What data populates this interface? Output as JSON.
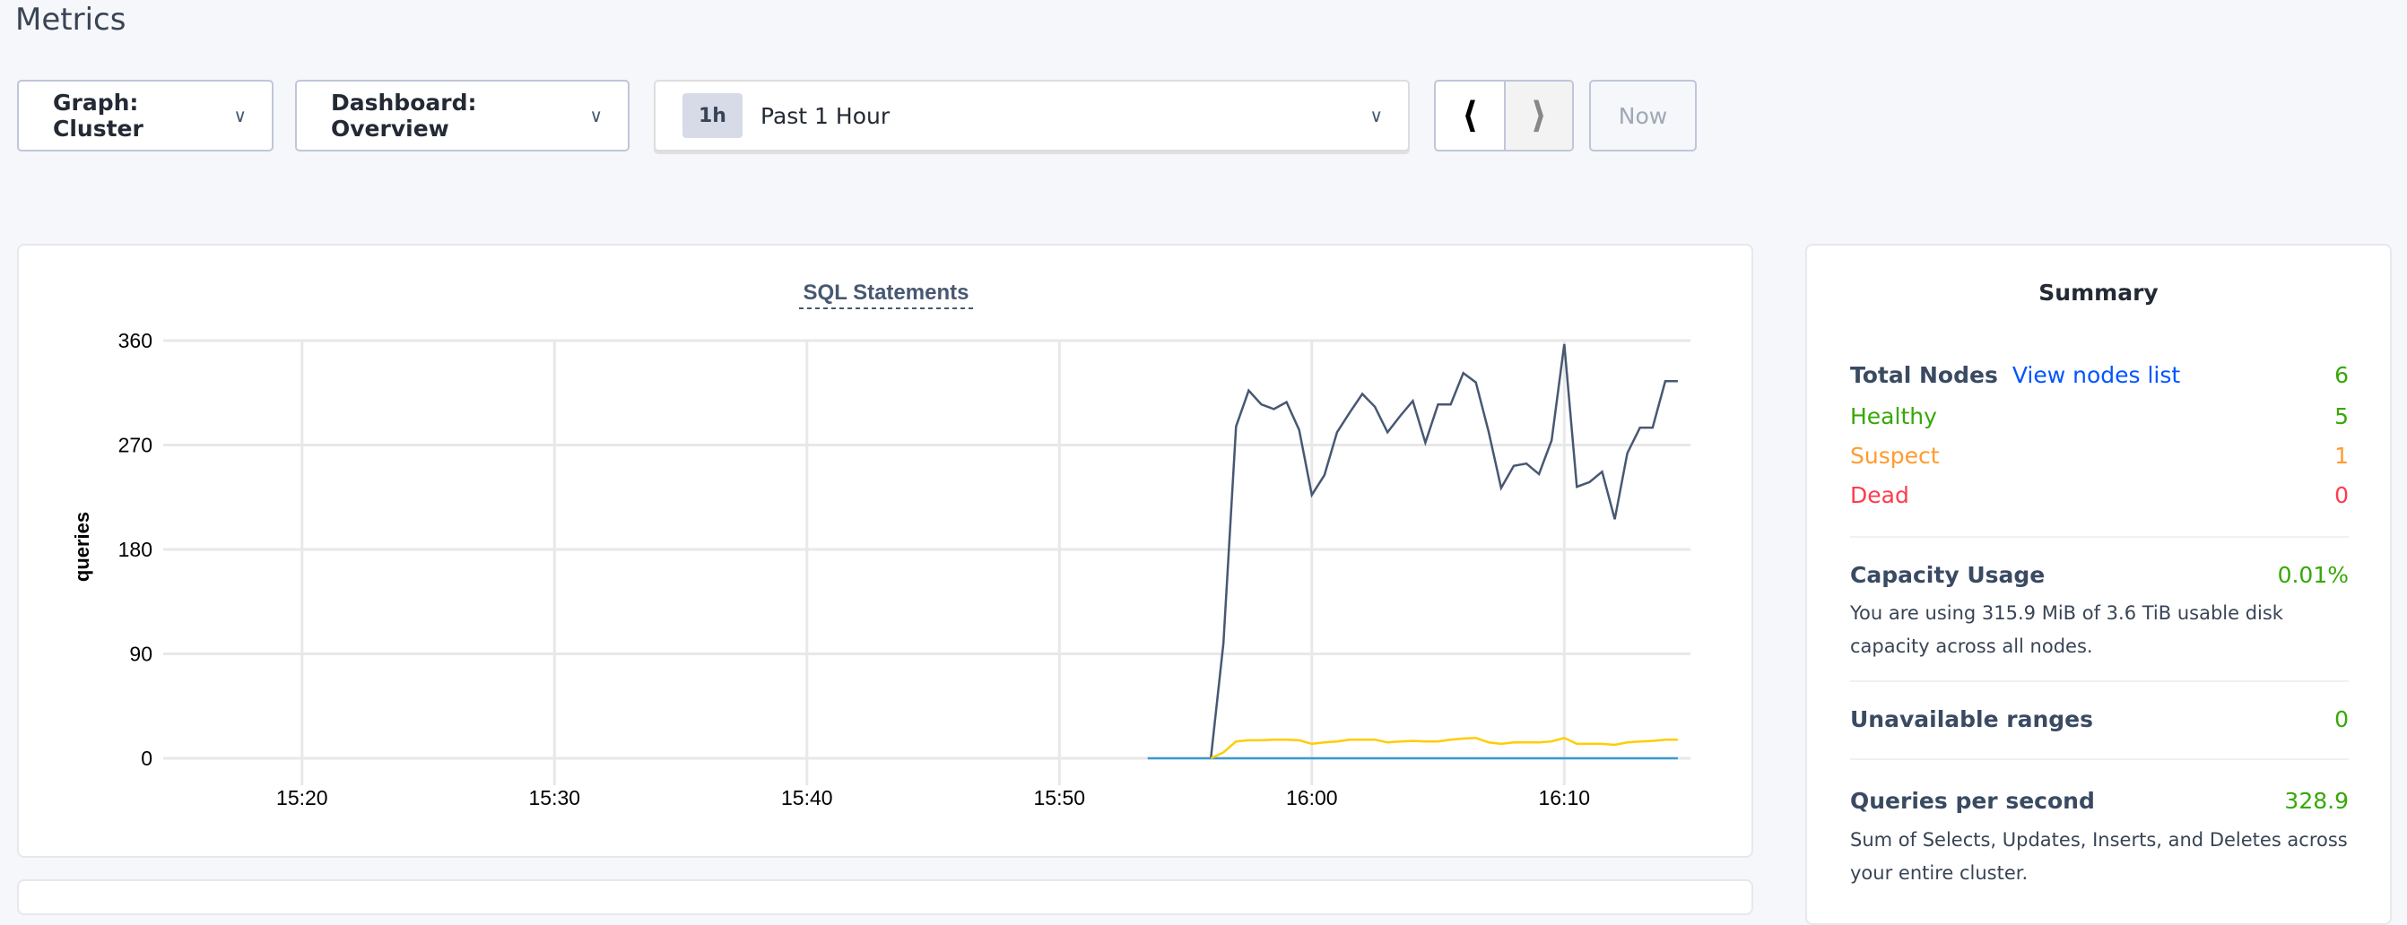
{
  "page": {
    "title": "Metrics"
  },
  "toolbar": {
    "graph_select": "Graph: Cluster",
    "dashboard_select": "Dashboard: Overview",
    "time_badge": "1h",
    "time_range": "Past 1 Hour",
    "prev_icon": "chevron-left-icon",
    "next_icon": "chevron-right-icon",
    "now_label": "Now"
  },
  "chart_data": {
    "type": "line",
    "title": "SQL Statements",
    "ylabel": "queries",
    "xlabel": "",
    "ylim": [
      0,
      360
    ],
    "xlim": [
      "15:14:30",
      "16:15:00"
    ],
    "yticks": [
      "0",
      "90",
      "180",
      "270",
      "360"
    ],
    "xticks": [
      "15:20",
      "15:30",
      "15:40",
      "15:50",
      "16:00",
      "16:10"
    ],
    "grid": true,
    "series": [
      {
        "color": "#3a99d0",
        "start": "15:53:30",
        "interval_seconds": 30,
        "values": [
          0,
          0,
          0,
          0,
          0,
          0,
          0,
          0,
          0,
          0,
          0,
          0,
          0,
          0,
          0,
          0,
          0,
          0,
          0,
          0,
          0,
          0,
          0,
          0,
          0,
          0,
          0,
          0,
          0,
          0,
          0,
          0,
          0,
          0,
          0,
          0,
          0,
          0,
          0,
          0,
          0,
          0,
          0
        ]
      },
      {
        "color": "#475872",
        "start": "15:56:00",
        "interval_seconds": 30,
        "values": [
          0,
          99,
          286,
          317,
          305,
          301,
          307,
          283,
          227,
          244,
          281,
          298,
          314,
          303,
          281,
          295,
          308,
          272,
          305,
          305,
          332,
          324,
          282,
          233,
          252,
          254,
          245,
          274,
          357,
          234,
          238,
          247,
          206,
          263,
          285,
          285,
          325,
          325
        ]
      },
      {
        "color": "#ffcd02",
        "start": "15:56:00",
        "interval_seconds": 30,
        "values": [
          0,
          5,
          14.5,
          15.5,
          15.5,
          16,
          16,
          15.5,
          12.4,
          13.7,
          14.5,
          16,
          16,
          16,
          13.7,
          14.5,
          15,
          14.5,
          14.5,
          16,
          17,
          17.5,
          13.7,
          12.4,
          13.7,
          13.7,
          13.7,
          14.5,
          17.5,
          12.4,
          12.4,
          12.4,
          11.6,
          13.7,
          14.5,
          15,
          16,
          16
        ]
      }
    ]
  },
  "summary": {
    "title": "Summary",
    "total_nodes_label": "Total Nodes",
    "view_nodes_link": "View nodes list",
    "total_nodes": "6",
    "healthy_label": "Healthy",
    "healthy": "5",
    "suspect_label": "Suspect",
    "suspect": "1",
    "dead_label": "Dead",
    "dead": "0",
    "capacity_label": "Capacity Usage",
    "capacity": "0.01%",
    "capacity_desc": "You are using 315.9 MiB of 3.6 TiB usable disk capacity across all nodes.",
    "unavailable_label": "Unavailable ranges",
    "unavailable": "0",
    "qps_label": "Queries per second",
    "qps": "328.9",
    "qps_desc": "Sum of Selects, Updates, Inserts, and Deletes across your entire cluster."
  }
}
